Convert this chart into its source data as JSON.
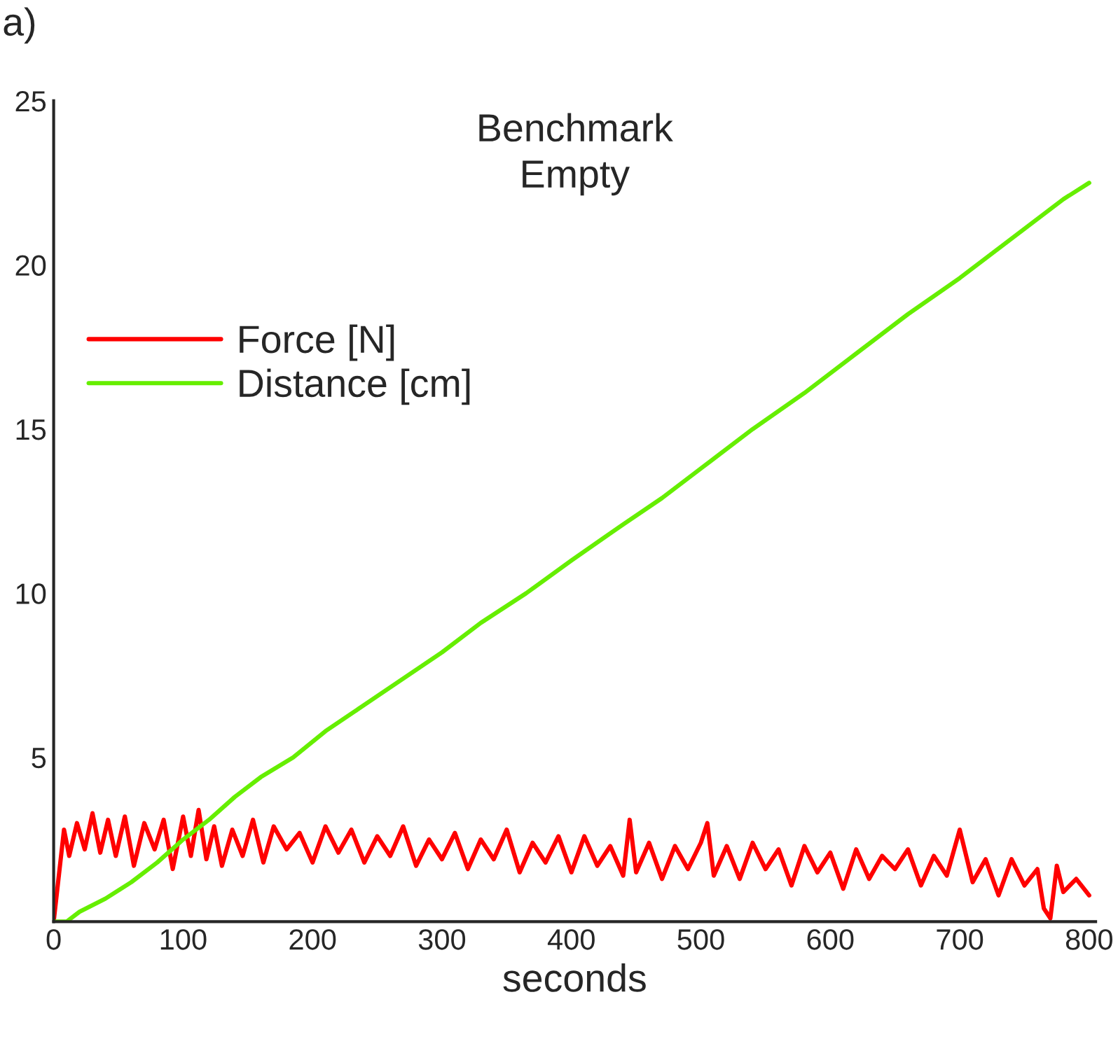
{
  "chart_data": {
    "type": "line",
    "title": "Benchmark\nEmpty",
    "xlabel": "seconds",
    "annotations": [
      "a)"
    ],
    "xlim": [
      0,
      805
    ],
    "ylim": [
      0,
      25
    ],
    "xticks": [
      0,
      100,
      200,
      300,
      400,
      500,
      600,
      700,
      800
    ],
    "yticks": [
      5,
      10,
      15,
      20,
      25
    ],
    "legend": "top left",
    "grid": false,
    "marker": "none",
    "line_style": "solid",
    "series": [
      {
        "name": "Force [N]",
        "color": "#ff0000",
        "x": [
          0,
          8,
          12,
          18,
          24,
          30,
          36,
          42,
          48,
          55,
          62,
          70,
          78,
          85,
          92,
          100,
          106,
          112,
          118,
          124,
          130,
          138,
          146,
          154,
          162,
          170,
          180,
          190,
          200,
          210,
          220,
          230,
          240,
          250,
          260,
          270,
          280,
          290,
          300,
          310,
          320,
          330,
          340,
          350,
          360,
          370,
          380,
          390,
          400,
          410,
          420,
          430,
          440,
          445,
          450,
          460,
          470,
          480,
          490,
          500,
          505,
          510,
          520,
          530,
          540,
          550,
          560,
          570,
          580,
          590,
          600,
          610,
          620,
          630,
          640,
          650,
          660,
          670,
          680,
          690,
          700,
          710,
          720,
          730,
          740,
          750,
          760,
          765,
          770,
          775,
          780,
          790,
          800
        ],
        "values": [
          0,
          2.8,
          2.0,
          3.0,
          2.2,
          3.3,
          2.1,
          3.1,
          2.0,
          3.2,
          1.7,
          3.0,
          2.2,
          3.1,
          1.6,
          3.2,
          2.0,
          3.4,
          1.9,
          2.9,
          1.7,
          2.8,
          2.0,
          3.1,
          1.8,
          2.9,
          2.2,
          2.7,
          1.8,
          2.9,
          2.1,
          2.8,
          1.8,
          2.6,
          2.0,
          2.9,
          1.7,
          2.5,
          1.9,
          2.7,
          1.6,
          2.5,
          1.9,
          2.8,
          1.5,
          2.4,
          1.8,
          2.6,
          1.5,
          2.6,
          1.7,
          2.3,
          1.4,
          3.1,
          1.5,
          2.4,
          1.3,
          2.3,
          1.6,
          2.4,
          3.0,
          1.4,
          2.3,
          1.3,
          2.4,
          1.6,
          2.2,
          1.1,
          2.3,
          1.5,
          2.1,
          1.0,
          2.2,
          1.3,
          2.0,
          1.6,
          2.2,
          1.1,
          2.0,
          1.4,
          2.8,
          1.2,
          1.9,
          0.8,
          1.9,
          1.1,
          1.6,
          0.4,
          0.1,
          1.7,
          0.9,
          1.3,
          0.8
        ]
      },
      {
        "name": "Distance [cm]",
        "color": "#66ee00",
        "x": [
          0,
          10,
          20,
          40,
          60,
          80,
          100,
          120,
          140,
          160,
          185,
          210,
          240,
          270,
          300,
          330,
          365,
          400,
          440,
          470,
          500,
          540,
          580,
          620,
          660,
          700,
          740,
          780,
          800
        ],
        "values": [
          0,
          0,
          0.3,
          0.7,
          1.2,
          1.8,
          2.5,
          3.1,
          3.8,
          4.4,
          5.0,
          5.8,
          6.6,
          7.4,
          8.2,
          9.1,
          10.0,
          11.0,
          12.1,
          12.9,
          13.8,
          15.0,
          16.1,
          17.3,
          18.5,
          19.6,
          20.8,
          22.0,
          22.5
        ]
      }
    ]
  }
}
